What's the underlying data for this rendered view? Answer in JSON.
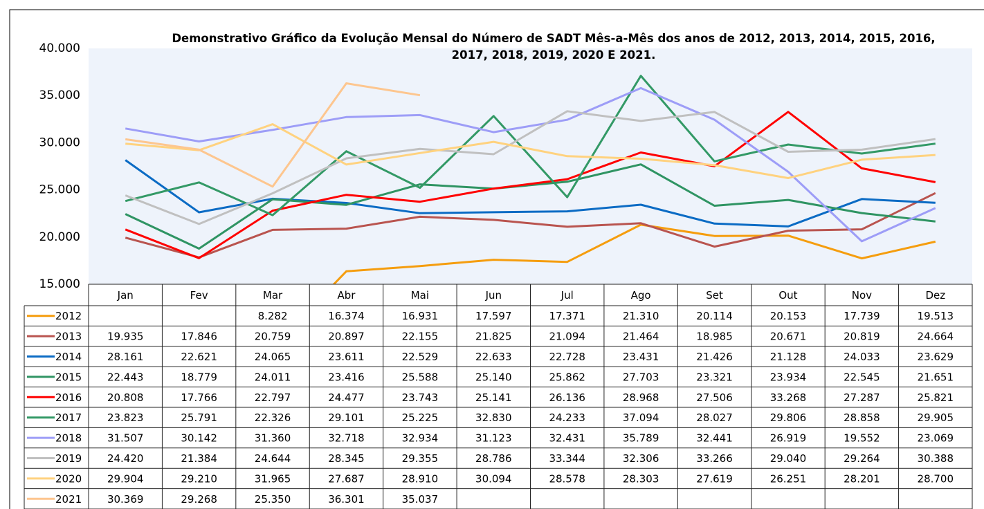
{
  "chart_data": {
    "type": "line",
    "title": "Demonstrativo Gráfico da Evolução Mensal do Número de SADT Mês-a-Mês dos anos de  2012, 2013, 2014, 2015, 2016, 2017, 2018, 2019, 2020 E 2021.",
    "categories": [
      "Jan",
      "Fev",
      "Mar",
      "Abr",
      "Mai",
      "Jun",
      "Jul",
      "Ago",
      "Set",
      "Out",
      "Nov",
      "Dez"
    ],
    "ylim": [
      15000,
      40000
    ],
    "yticks": [
      {
        "value": 15000,
        "label": "15.000"
      },
      {
        "value": 20000,
        "label": "20.000"
      },
      {
        "value": 25000,
        "label": "25.000"
      },
      {
        "value": 30000,
        "label": "30.000"
      },
      {
        "value": 35000,
        "label": "35.000"
      },
      {
        "value": 40000,
        "label": "40.000"
      }
    ],
    "grid": false,
    "series": [
      {
        "name": "2012",
        "color": "#f59d0e",
        "values": [
          null,
          null,
          8282,
          16374,
          16931,
          17597,
          17371,
          21310,
          20114,
          20153,
          17739,
          19513
        ],
        "value_labels": [
          null,
          null,
          "8.282",
          "16.374",
          "16.931",
          "17.597",
          "17.371",
          "21.310",
          "20.114",
          "20.153",
          "17.739",
          "19.513"
        ]
      },
      {
        "name": "2013",
        "color": "#b9544f",
        "values": [
          19935,
          17846,
          20759,
          20897,
          22155,
          21825,
          21094,
          21464,
          18985,
          20671,
          20819,
          24664
        ],
        "value_labels": [
          "19.935",
          "17.846",
          "20.759",
          "20.897",
          "22.155",
          "21.825",
          "21.094",
          "21.464",
          "18.985",
          "20.671",
          "20.819",
          "24.664"
        ]
      },
      {
        "name": "2014",
        "color": "#0b6bc4",
        "values": [
          28161,
          22621,
          24065,
          23611,
          22529,
          22633,
          22728,
          23431,
          21426,
          21128,
          24033,
          23629
        ],
        "value_labels": [
          "28.161",
          "22.621",
          "24.065",
          "23.611",
          "22.529",
          "22.633",
          "22.728",
          "23.431",
          "21.426",
          "21.128",
          "24.033",
          "23.629"
        ]
      },
      {
        "name": "2015",
        "color": "#2f9463",
        "values": [
          22443,
          18779,
          24011,
          23416,
          25588,
          25140,
          25862,
          27703,
          23321,
          23934,
          22545,
          21651
        ],
        "value_labels": [
          "22.443",
          "18.779",
          "24.011",
          "23.416",
          "25.588",
          "25.140",
          "25.862",
          "27.703",
          "23.321",
          "23.934",
          "22.545",
          "21.651"
        ]
      },
      {
        "name": "2016",
        "color": "#ff0000",
        "values": [
          20808,
          17766,
          22797,
          24477,
          23743,
          25141,
          26136,
          28968,
          27506,
          33268,
          27287,
          25821
        ],
        "value_labels": [
          "20.808",
          "17.766",
          "22.797",
          "24.477",
          "23.743",
          "25.141",
          "26.136",
          "28.968",
          "27.506",
          "33.268",
          "27.287",
          "25.821"
        ]
      },
      {
        "name": "2017",
        "color": "#339966",
        "values": [
          23823,
          25791,
          22326,
          29101,
          25225,
          32830,
          24233,
          37094,
          28027,
          29806,
          28858,
          29905
        ],
        "value_labels": [
          "23.823",
          "25.791",
          "22.326",
          "29.101",
          "25.225",
          "32.830",
          "24.233",
          "37.094",
          "28.027",
          "29.806",
          "28.858",
          "29.905"
        ]
      },
      {
        "name": "2018",
        "color": "#9d9df7",
        "values": [
          31507,
          30142,
          31360,
          32718,
          32934,
          31123,
          32431,
          35789,
          32441,
          26919,
          19552,
          23069
        ],
        "value_labels": [
          "31.507",
          "30.142",
          "31.360",
          "32.718",
          "32.934",
          "31.123",
          "32.431",
          "35.789",
          "32.441",
          "26.919",
          "19.552",
          "23.069"
        ]
      },
      {
        "name": "2019",
        "color": "#c0c0c0",
        "values": [
          24420,
          21384,
          24644,
          28345,
          29355,
          28786,
          33344,
          32306,
          33266,
          29040,
          29264,
          30388
        ],
        "value_labels": [
          "24.420",
          "21.384",
          "24.644",
          "28.345",
          "29.355",
          "28.786",
          "33.344",
          "32.306",
          "33.266",
          "29.040",
          "29.264",
          "30.388"
        ]
      },
      {
        "name": "2020",
        "color": "#ffd27f",
        "values": [
          29904,
          29210,
          31965,
          27687,
          28910,
          30094,
          28578,
          28303,
          27619,
          26251,
          28201,
          28700
        ],
        "value_labels": [
          "29.904",
          "29.210",
          "31.965",
          "27.687",
          "28.910",
          "30.094",
          "28.578",
          "28.303",
          "27.619",
          "26.251",
          "28.201",
          "28.700"
        ]
      },
      {
        "name": "2021",
        "color": "#fdc68f",
        "values": [
          30369,
          29268,
          25350,
          36301,
          35037,
          null,
          null,
          null,
          null,
          null,
          null,
          null
        ],
        "value_labels": [
          "30.369",
          "29.268",
          "25.350",
          "36.301",
          "35.037",
          null,
          null,
          null,
          null,
          null,
          null,
          null
        ]
      }
    ]
  }
}
